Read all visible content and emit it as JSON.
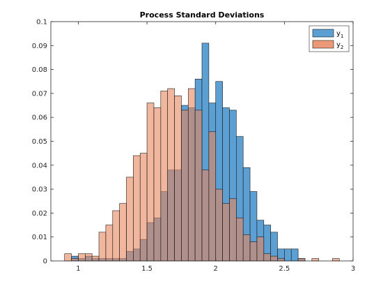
{
  "chart_data": {
    "type": "bar",
    "title": "Process Standard Deviations",
    "xlabel": "",
    "ylabel": "",
    "xlim": [
      0.8,
      3.0
    ],
    "ylim": [
      0,
      0.1
    ],
    "grid": false,
    "legend_position": "top-right",
    "x_ticks": [
      "1",
      "1.5",
      "2",
      "2.5",
      "3"
    ],
    "y_ticks": [
      "0",
      "0.01",
      "0.02",
      "0.03",
      "0.04",
      "0.05",
      "0.06",
      "0.07",
      "0.08",
      "0.09",
      "0.1"
    ],
    "bin_width": 0.05,
    "series": [
      {
        "name": "y₁",
        "legend_base": "y",
        "legend_sub": "1",
        "color": "#5b9fd3",
        "bars": [
          {
            "x0": 0.95,
            "h": 0.002
          },
          {
            "x0": 1.0,
            "h": 0.001
          },
          {
            "x0": 1.05,
            "h": 0.002
          },
          {
            "x0": 1.1,
            "h": 0.001
          },
          {
            "x0": 1.15,
            "h": 0.001
          },
          {
            "x0": 1.2,
            "h": 0.001
          },
          {
            "x0": 1.25,
            "h": 0.001
          },
          {
            "x0": 1.3,
            "h": 0.001
          },
          {
            "x0": 1.35,
            "h": 0.004
          },
          {
            "x0": 1.4,
            "h": 0.005
          },
          {
            "x0": 1.45,
            "h": 0.009
          },
          {
            "x0": 1.5,
            "h": 0.016
          },
          {
            "x0": 1.55,
            "h": 0.018
          },
          {
            "x0": 1.6,
            "h": 0.029
          },
          {
            "x0": 1.65,
            "h": 0.038
          },
          {
            "x0": 1.7,
            "h": 0.038
          },
          {
            "x0": 1.75,
            "h": 0.065
          },
          {
            "x0": 1.8,
            "h": 0.064
          },
          {
            "x0": 1.85,
            "h": 0.076
          },
          {
            "x0": 1.9,
            "h": 0.091
          },
          {
            "x0": 1.95,
            "h": 0.066
          },
          {
            "x0": 2.0,
            "h": 0.075
          },
          {
            "x0": 2.05,
            "h": 0.064
          },
          {
            "x0": 2.1,
            "h": 0.063
          },
          {
            "x0": 2.15,
            "h": 0.052
          },
          {
            "x0": 2.2,
            "h": 0.039
          },
          {
            "x0": 2.25,
            "h": 0.029
          },
          {
            "x0": 2.3,
            "h": 0.017
          },
          {
            "x0": 2.35,
            "h": 0.015
          },
          {
            "x0": 2.4,
            "h": 0.012
          },
          {
            "x0": 2.45,
            "h": 0.005
          },
          {
            "x0": 2.5,
            "h": 0.005
          },
          {
            "x0": 2.55,
            "h": 0.005
          },
          {
            "x0": 2.6,
            "h": 0.001
          }
        ]
      },
      {
        "name": "y₂",
        "legend_base": "y",
        "legend_sub": "2",
        "color": "#e8875e",
        "bars": [
          {
            "x0": 0.9,
            "h": 0.003
          },
          {
            "x0": 0.95,
            "h": 0.001
          },
          {
            "x0": 1.0,
            "h": 0.003
          },
          {
            "x0": 1.05,
            "h": 0.003
          },
          {
            "x0": 1.1,
            "h": 0.002
          },
          {
            "x0": 1.15,
            "h": 0.012
          },
          {
            "x0": 1.2,
            "h": 0.015
          },
          {
            "x0": 1.25,
            "h": 0.021
          },
          {
            "x0": 1.3,
            "h": 0.024
          },
          {
            "x0": 1.35,
            "h": 0.035
          },
          {
            "x0": 1.4,
            "h": 0.044
          },
          {
            "x0": 1.45,
            "h": 0.045
          },
          {
            "x0": 1.5,
            "h": 0.066
          },
          {
            "x0": 1.55,
            "h": 0.064
          },
          {
            "x0": 1.6,
            "h": 0.071
          },
          {
            "x0": 1.65,
            "h": 0.072
          },
          {
            "x0": 1.7,
            "h": 0.069
          },
          {
            "x0": 1.75,
            "h": 0.063
          },
          {
            "x0": 1.8,
            "h": 0.072
          },
          {
            "x0": 1.85,
            "h": 0.063
          },
          {
            "x0": 1.9,
            "h": 0.038
          },
          {
            "x0": 1.95,
            "h": 0.054
          },
          {
            "x0": 2.0,
            "h": 0.03
          },
          {
            "x0": 2.05,
            "h": 0.024
          },
          {
            "x0": 2.1,
            "h": 0.026
          },
          {
            "x0": 2.15,
            "h": 0.018
          },
          {
            "x0": 2.2,
            "h": 0.011
          },
          {
            "x0": 2.25,
            "h": 0.008
          },
          {
            "x0": 2.3,
            "h": 0.01
          },
          {
            "x0": 2.35,
            "h": 0.003
          },
          {
            "x0": 2.4,
            "h": 0.002
          },
          {
            "x0": 2.45,
            "h": 0.001
          },
          {
            "x0": 2.6,
            "h": 0.001
          },
          {
            "x0": 2.7,
            "h": 0.001
          },
          {
            "x0": 2.85,
            "h": 0.001
          }
        ]
      }
    ]
  }
}
